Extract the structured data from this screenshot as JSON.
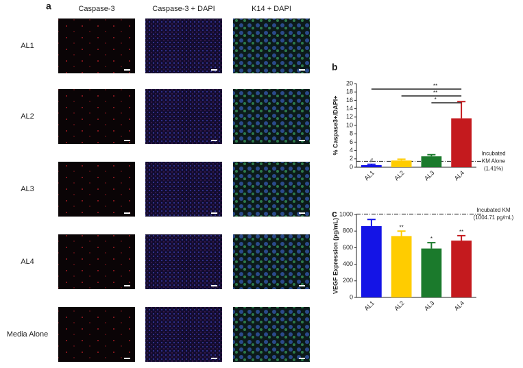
{
  "figure": {
    "panel_label": "a",
    "columns": [
      "Caspase-3",
      "Caspase-3 + DAPI",
      "K14 + DAPI"
    ],
    "rows": [
      "AL1",
      "AL2",
      "AL3",
      "AL4",
      "Media Alone"
    ]
  },
  "chart_data": [
    {
      "type": "bar",
      "panel_label": "b",
      "ylabel": "% Caspase3+/DAPI+",
      "categories": [
        "AL1",
        "AL2",
        "AL3",
        "AL4"
      ],
      "values": [
        0.5,
        1.6,
        2.6,
        11.7
      ],
      "errors": [
        0.2,
        0.3,
        0.4,
        4.0
      ],
      "colors": [
        "#1414e6",
        "#ffcc00",
        "#1b7a2c",
        "#c41a1e"
      ],
      "bar_annotations": [
        "#",
        null,
        null,
        null
      ],
      "ylim": [
        0,
        20
      ],
      "yticks": [
        0,
        2,
        4,
        6,
        8,
        10,
        12,
        14,
        16,
        18,
        20
      ],
      "reference": {
        "value": 1.41,
        "label": [
          "Incubated",
          "KM Alone",
          "(1.41%)"
        ]
      },
      "significance": [
        {
          "between": [
            "AL1",
            "AL4"
          ],
          "label": "**"
        },
        {
          "between": [
            "AL2",
            "AL4"
          ],
          "label": "**"
        },
        {
          "between": [
            "AL3",
            "AL4"
          ],
          "label": "*"
        }
      ]
    },
    {
      "type": "bar",
      "panel_label": "c",
      "ylabel": "VEGF Expression  (pg/mL)",
      "categories": [
        "AL1",
        "AL2",
        "AL3",
        "AL4"
      ],
      "values": [
        860,
        740,
        590,
        685
      ],
      "errors": [
        80,
        60,
        70,
        60
      ],
      "colors": [
        "#1414e6",
        "#ffcc00",
        "#1b7a2c",
        "#c41a1e"
      ],
      "bar_annotations": [
        null,
        "**",
        "*",
        "**"
      ],
      "ylim": [
        0,
        1000
      ],
      "yticks": [
        0,
        200,
        400,
        600,
        800,
        1000
      ],
      "reference": {
        "value": 1004.71,
        "label": [
          "Incubated KM",
          "(1004.71 pg/mL)"
        ]
      },
      "significance": []
    }
  ]
}
